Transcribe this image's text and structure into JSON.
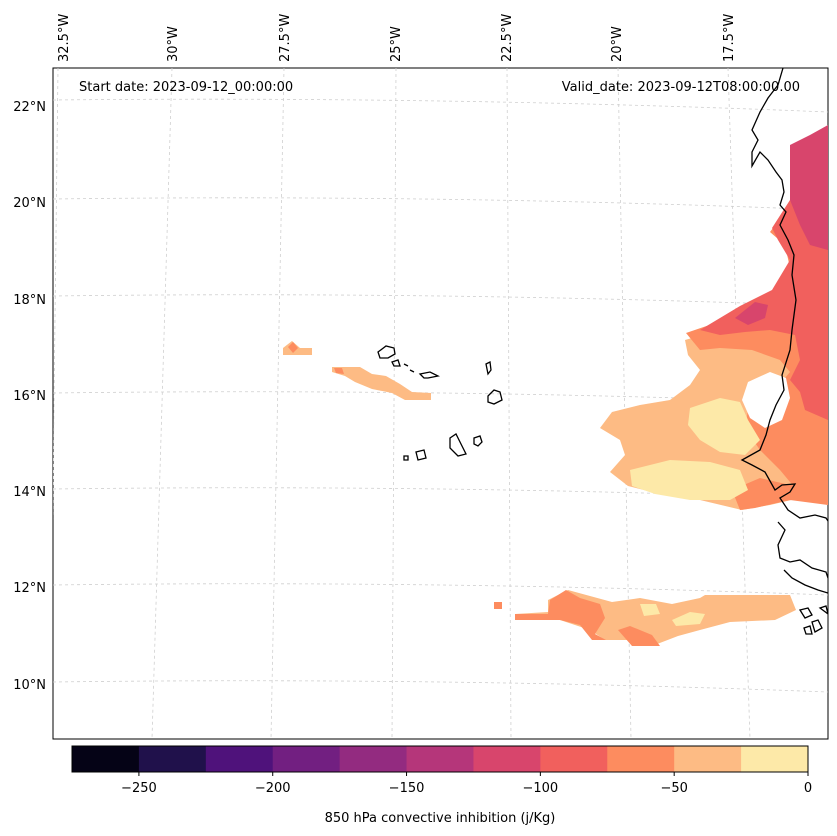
{
  "header": {
    "start_date": "Start date: 2023-09-12_00:00:00",
    "valid_date": "Valid_date: 2023-09-12T08:00:00.00"
  },
  "longitude_labels": [
    "32.5°W",
    "30°W",
    "27.5°W",
    "25°W",
    "22.5°W",
    "20°W",
    "17.5°W"
  ],
  "latitude_labels": [
    "22°N",
    "20°N",
    "18°N",
    "16°N",
    "14°N",
    "12°N",
    "10°N"
  ],
  "colorbar": {
    "label": "850 hPa convective inhibition (j/Kg)",
    "ticks": [
      "−250",
      "−200",
      "−150",
      "−100",
      "−50",
      "0"
    ],
    "levels": [
      -275,
      -250,
      -225,
      -200,
      -175,
      -150,
      -125,
      -100,
      -75,
      -50,
      -25,
      0
    ],
    "colors": [
      "#050316",
      "#20114b",
      "#4f127b",
      "#721f81",
      "#932b80",
      "#b5367a",
      "#d8456c",
      "#f1605d",
      "#fd8c5f",
      "#fdbb84",
      "#fde9a8"
    ]
  },
  "colors": {
    "gridline": "#c8c8c8",
    "coastline": "#000000"
  }
}
